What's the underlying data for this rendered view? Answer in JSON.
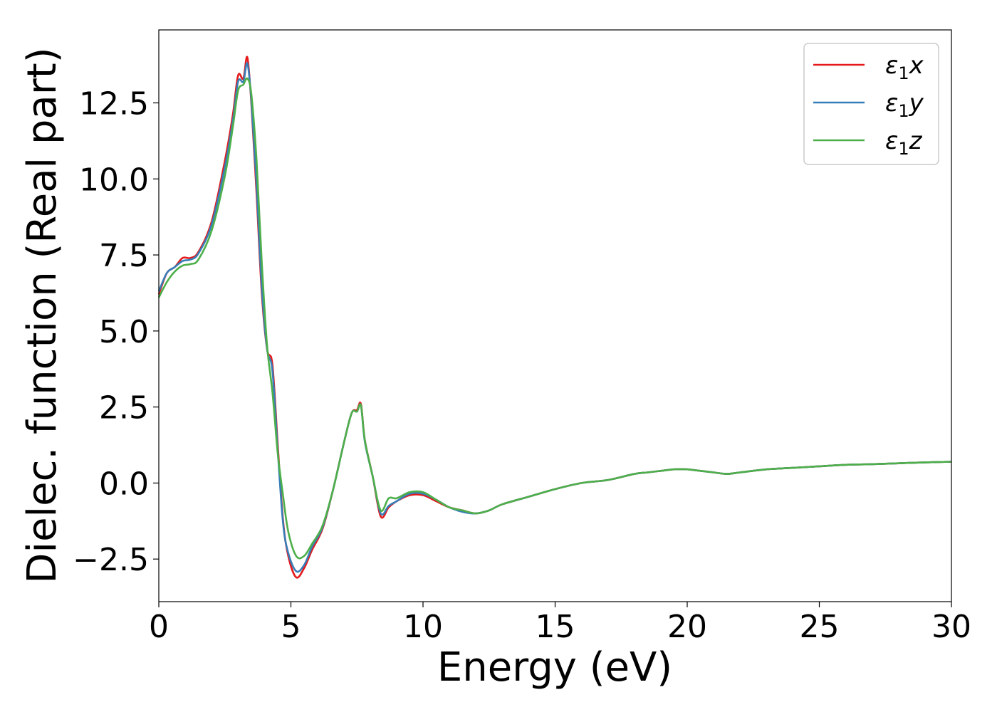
{
  "chart_data": {
    "type": "line",
    "xlabel": "Energy (eV)",
    "ylabel": "Dielec. function (Real part)",
    "xlim": [
      0,
      30
    ],
    "ylim": [
      -3.9,
      14.9
    ],
    "xticks": [
      0,
      5,
      10,
      15,
      20,
      25,
      30
    ],
    "xtick_labels": [
      "0",
      "5",
      "10",
      "15",
      "20",
      "25",
      "30"
    ],
    "yticks": [
      -2.5,
      0,
      2.5,
      5,
      7.5,
      10,
      12.5
    ],
    "ytick_labels": [
      "−2.5",
      "0.0",
      "2.5",
      "5.0",
      "7.5",
      "10.0",
      "12.5"
    ],
    "grid": false,
    "legend_position": "top-right",
    "series": [
      {
        "name": "ε1x",
        "legend": {
          "eps": "ε",
          "sub": "1",
          "axis": "x"
        },
        "color": "#e41a1c",
        "x": [
          0,
          0.3,
          0.6,
          0.9,
          1.2,
          1.5,
          2.0,
          2.5,
          2.8,
          3.0,
          3.2,
          3.35,
          3.5,
          3.7,
          3.9,
          4.1,
          4.3,
          4.5,
          4.7,
          4.9,
          5.2,
          5.5,
          5.8,
          6.2,
          6.6,
          7.0,
          7.3,
          7.5,
          7.65,
          7.8,
          8.1,
          8.4,
          8.7,
          9.0,
          9.5,
          10.0,
          10.5,
          11.0,
          11.5,
          12.0,
          12.5,
          13.0,
          14.0,
          15.0,
          16.0,
          17.0,
          18.0,
          18.5,
          19.0,
          19.5,
          20.0,
          20.5,
          21.0,
          21.5,
          22.0,
          23.0,
          24.0,
          25.0,
          26.0,
          27.0,
          28.0,
          29.0,
          30.0
        ],
        "y": [
          6.2,
          6.9,
          7.1,
          7.4,
          7.4,
          7.6,
          8.6,
          10.6,
          12.1,
          13.4,
          13.3,
          14.0,
          12.5,
          9.5,
          6.2,
          4.4,
          3.9,
          1.3,
          -1.2,
          -2.4,
          -3.1,
          -2.8,
          -2.2,
          -1.5,
          -0.2,
          1.3,
          2.3,
          2.4,
          2.6,
          1.4,
          0.2,
          -1.1,
          -0.8,
          -0.6,
          -0.4,
          -0.4,
          -0.6,
          -0.8,
          -0.9,
          -1.0,
          -0.9,
          -0.7,
          -0.45,
          -0.2,
          0.0,
          0.1,
          0.3,
          0.35,
          0.4,
          0.45,
          0.45,
          0.4,
          0.35,
          0.3,
          0.35,
          0.45,
          0.5,
          0.55,
          0.6,
          0.62,
          0.65,
          0.68,
          0.7
        ]
      },
      {
        "name": "ε1y",
        "legend": {
          "eps": "ε",
          "sub": "1",
          "axis": "y"
        },
        "color": "#377eb8",
        "x": [
          0,
          0.3,
          0.6,
          0.9,
          1.2,
          1.5,
          2.0,
          2.5,
          2.8,
          3.0,
          3.2,
          3.35,
          3.5,
          3.7,
          3.9,
          4.1,
          4.3,
          4.5,
          4.7,
          4.9,
          5.2,
          5.5,
          5.8,
          6.2,
          6.6,
          7.0,
          7.3,
          7.5,
          7.65,
          7.8,
          8.1,
          8.4,
          8.7,
          9.0,
          9.5,
          10.0,
          10.5,
          11.0,
          11.5,
          12.0,
          12.5,
          13.0,
          14.0,
          15.0,
          16.0,
          17.0,
          18.0,
          18.5,
          19.0,
          19.5,
          20.0,
          20.5,
          21.0,
          21.5,
          22.0,
          23.0,
          24.0,
          25.0,
          26.0,
          27.0,
          28.0,
          29.0,
          30.0
        ],
        "y": [
          6.3,
          6.9,
          7.1,
          7.3,
          7.35,
          7.55,
          8.5,
          10.4,
          11.9,
          13.2,
          13.2,
          13.8,
          12.6,
          9.8,
          6.4,
          4.4,
          3.7,
          1.1,
          -1.3,
          -2.3,
          -2.9,
          -2.7,
          -2.1,
          -1.45,
          -0.2,
          1.3,
          2.3,
          2.35,
          2.55,
          1.35,
          0.2,
          -1.0,
          -0.75,
          -0.6,
          -0.35,
          -0.35,
          -0.55,
          -0.8,
          -0.95,
          -1.0,
          -0.9,
          -0.7,
          -0.45,
          -0.2,
          0.0,
          0.1,
          0.3,
          0.35,
          0.4,
          0.45,
          0.45,
          0.4,
          0.35,
          0.3,
          0.35,
          0.45,
          0.5,
          0.55,
          0.6,
          0.62,
          0.65,
          0.68,
          0.7
        ]
      },
      {
        "name": "ε1z",
        "legend": {
          "eps": "ε",
          "sub": "1",
          "axis": "z"
        },
        "color": "#4daf4a",
        "x": [
          0,
          0.3,
          0.6,
          0.9,
          1.2,
          1.5,
          2.0,
          2.5,
          2.8,
          3.0,
          3.2,
          3.35,
          3.5,
          3.7,
          3.9,
          4.1,
          4.3,
          4.5,
          4.7,
          4.9,
          5.2,
          5.5,
          5.8,
          6.2,
          6.6,
          7.0,
          7.3,
          7.5,
          7.65,
          7.8,
          8.1,
          8.4,
          8.7,
          9.0,
          9.5,
          10.0,
          10.5,
          11.0,
          11.5,
          12.0,
          12.5,
          13.0,
          14.0,
          15.0,
          16.0,
          17.0,
          18.0,
          18.5,
          19.0,
          19.5,
          20.0,
          20.5,
          21.0,
          21.5,
          22.0,
          23.0,
          24.0,
          25.0,
          26.0,
          27.0,
          28.0,
          29.0,
          30.0
        ],
        "y": [
          6.1,
          6.6,
          6.95,
          7.15,
          7.2,
          7.35,
          8.3,
          10.1,
          11.7,
          12.9,
          13.1,
          13.3,
          12.8,
          10.6,
          7.2,
          4.5,
          3.0,
          1.0,
          -0.4,
          -1.6,
          -2.4,
          -2.4,
          -2.0,
          -1.4,
          -0.2,
          1.3,
          2.3,
          2.35,
          2.55,
          1.4,
          0.2,
          -0.9,
          -0.5,
          -0.5,
          -0.3,
          -0.3,
          -0.55,
          -0.8,
          -0.9,
          -1.0,
          -0.9,
          -0.7,
          -0.45,
          -0.2,
          0.0,
          0.1,
          0.3,
          0.35,
          0.4,
          0.45,
          0.45,
          0.4,
          0.35,
          0.3,
          0.35,
          0.45,
          0.5,
          0.55,
          0.6,
          0.62,
          0.65,
          0.68,
          0.7
        ]
      }
    ]
  }
}
